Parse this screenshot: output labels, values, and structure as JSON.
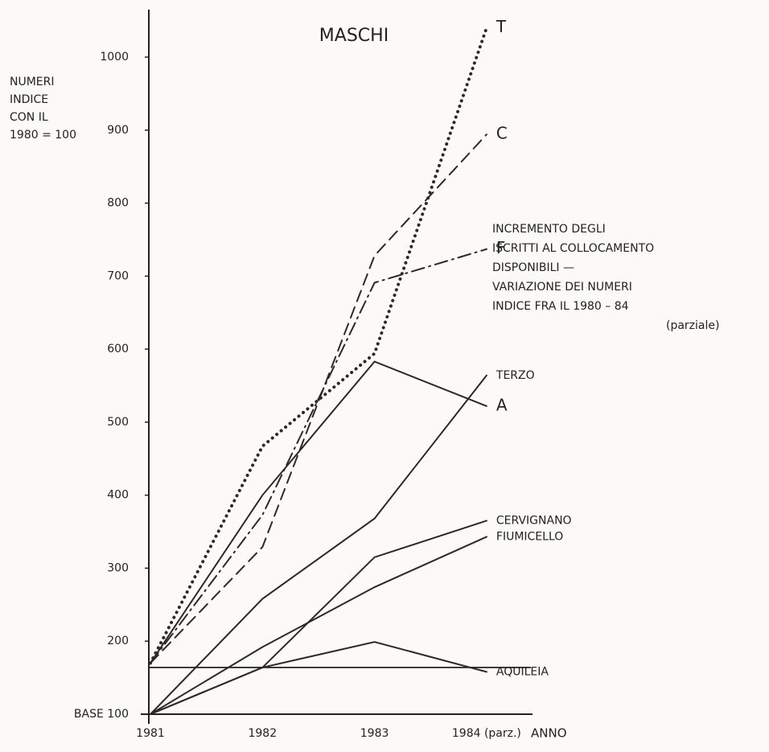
{
  "chart_data": {
    "type": "line",
    "title": "MASCHI",
    "y_label_lines": [
      "NUMERI",
      "INDICE",
      "CON IL",
      "1980 = 100"
    ],
    "x_label": "ANNO",
    "note_lines": [
      "INCREMENTO DEGLI",
      "ISCRITTI AL COLLOCAMENTO",
      "DISPONIBILI —",
      "VARIAZIONE DEI NUMERI",
      "INDICE FRA IL 1980 – 84",
      "(parziale)"
    ],
    "categories": [
      "1981",
      "1982",
      "1983",
      "1984 (parz.)"
    ],
    "ylim": [
      100,
      1065
    ],
    "yticks": [
      {
        "value": 100,
        "label": "BASE 100"
      },
      200,
      300,
      400,
      500,
      600,
      700,
      800,
      900,
      1000
    ],
    "reference_line": 164,
    "series": [
      {
        "name": "T",
        "color": "#2a2a2a",
        "style": "dotted",
        "values": [
          170,
          467,
          594,
          1040
        ]
      },
      {
        "name": "C",
        "color": "#2a2a2a",
        "style": "dashed",
        "values": [
          170,
          329,
          728,
          894
        ]
      },
      {
        "name": "F",
        "color": "#2a2a2a",
        "style": "dashdot",
        "values": [
          170,
          373,
          691,
          737
        ]
      },
      {
        "name": "A",
        "color": "#2a2a2a",
        "style": "solid",
        "values": [
          170,
          400,
          583,
          522
        ]
      },
      {
        "name": "TERZO",
        "color": "#2a2a2a",
        "style": "solid",
        "values": [
          100,
          258,
          368,
          564
        ]
      },
      {
        "name": "CERVIGNANO",
        "color": "#2a2a2a",
        "style": "solid",
        "values": [
          100,
          164,
          315,
          365
        ]
      },
      {
        "name": "FIUMICELLO",
        "color": "#2a2a2a",
        "style": "solid",
        "values": [
          100,
          192,
          274,
          343
        ]
      },
      {
        "name": "AQUILEIA",
        "color": "#2a2a2a",
        "style": "solid",
        "values": [
          100,
          164,
          199,
          158
        ]
      }
    ]
  }
}
